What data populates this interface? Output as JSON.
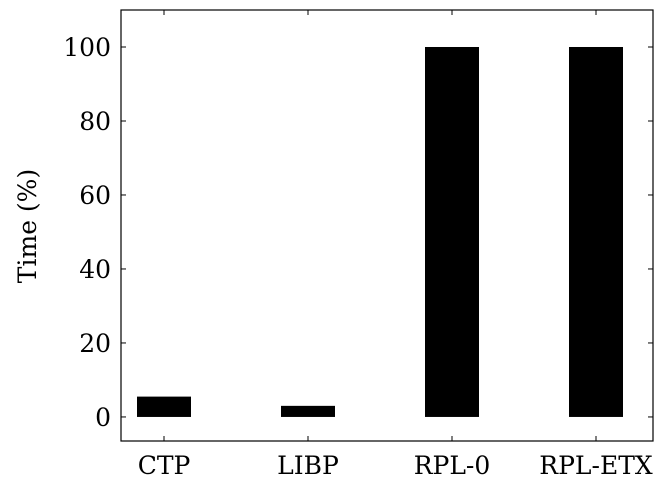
{
  "chart_data": {
    "type": "bar",
    "categories": [
      "CTP",
      "LIBP",
      "RPL-0",
      "RPL-ETX"
    ],
    "values": [
      5.5,
      3,
      100,
      100
    ],
    "title": "",
    "xlabel": "",
    "ylabel": "Time (%)",
    "ylim": [
      -6.5,
      110
    ],
    "yticks": [
      0,
      20,
      40,
      60,
      80,
      100
    ],
    "bar_color": "#000000",
    "grid": false,
    "legend": "none"
  }
}
